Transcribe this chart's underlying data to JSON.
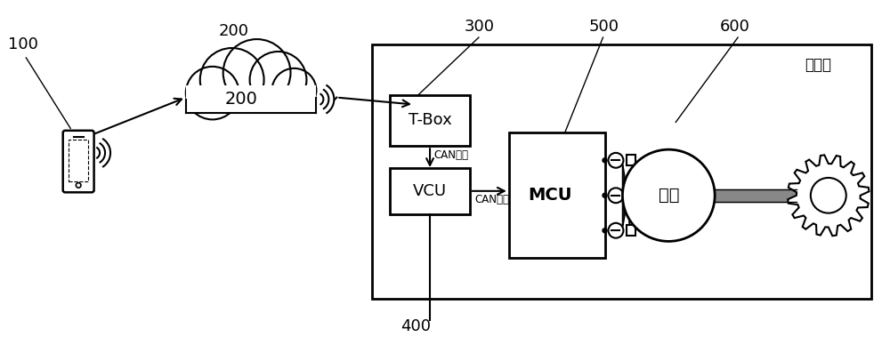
{
  "bg_color": "#ffffff",
  "lc": "#000000",
  "label_100": "100",
  "label_200": "200",
  "label_300": "300",
  "label_400": "400",
  "label_500": "500",
  "label_600": "600",
  "tbox_label": "T-Box",
  "vcu_label": "VCU",
  "mcu_label": "MCU",
  "motor_label": "电机",
  "vehicle_label": "车辆端",
  "can1_label": "CAN网络",
  "can2_label": "CAN网络",
  "figw": 10.0,
  "figh": 3.79,
  "dpi": 100
}
